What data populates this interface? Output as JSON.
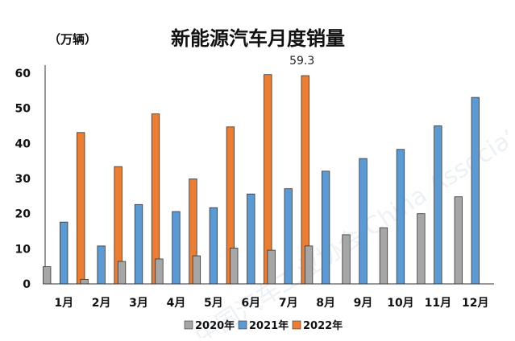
{
  "chart_data": {
    "type": "bar",
    "title": "新能源汽车月度销量",
    "unit_label": "（万辆）",
    "categories": [
      "1月",
      "2月",
      "3月",
      "4月",
      "5月",
      "6月",
      "7月",
      "8月",
      "9月",
      "10月",
      "11月",
      "12月"
    ],
    "series": [
      {
        "name": "2020年",
        "color": "#a6a6a6",
        "values": [
          4.9,
          1.3,
          6.4,
          7.1,
          8.0,
          10.2,
          9.6,
          10.8,
          14.0,
          16.0,
          20.0,
          24.8
        ]
      },
      {
        "name": "2021年",
        "color": "#5b9bd5",
        "values": [
          17.6,
          10.8,
          22.6,
          20.6,
          21.7,
          25.6,
          27.1,
          32.1,
          35.7,
          38.3,
          45.0,
          53.1
        ]
      },
      {
        "name": "2022年",
        "color": "#ed7d31",
        "values": [
          43.1,
          33.4,
          48.4,
          29.9,
          44.7,
          59.6,
          59.3,
          null,
          null,
          null,
          null,
          null
        ]
      }
    ],
    "ylim": [
      0,
      60
    ],
    "yticks": [
      0,
      10,
      20,
      30,
      40,
      50,
      60
    ],
    "annotation": {
      "category_index": 6,
      "series_index": 2,
      "text": "59.3"
    },
    "grid": false,
    "legend_position": "bottom",
    "watermark_text": "中国汽车工业协会 China Association of Automobile Manufacturers"
  }
}
